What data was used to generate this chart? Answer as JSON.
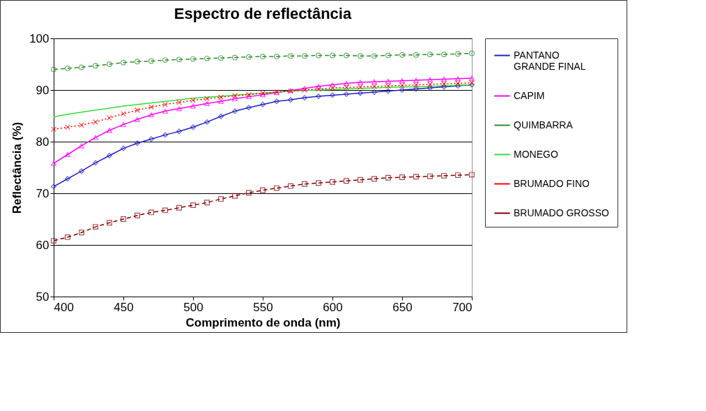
{
  "chart_data": {
    "type": "line",
    "title": "Espectro de reflectância",
    "xlabel": "Comprimento de onda (nm)",
    "ylabel": "Reflectância (%)",
    "x": [
      400,
      410,
      420,
      430,
      440,
      450,
      460,
      470,
      480,
      490,
      500,
      510,
      520,
      530,
      540,
      550,
      560,
      570,
      580,
      590,
      600,
      610,
      620,
      630,
      640,
      650,
      660,
      670,
      680,
      690,
      700
    ],
    "xlim": [
      400,
      700
    ],
    "xticks": [
      400,
      450,
      500,
      550,
      600,
      650,
      700
    ],
    "ylim": [
      50,
      100
    ],
    "yticks": [
      50,
      60,
      70,
      80,
      90,
      100
    ],
    "grid": "y",
    "legend": "right",
    "series": [
      {
        "name": "PANTANO GRANDE FINAL",
        "color": "#2020c0",
        "marker": "diamond",
        "line_style": "solid",
        "values": [
          71.3,
          72.8,
          74.3,
          75.9,
          77.3,
          78.7,
          79.7,
          80.5,
          81.3,
          82.0,
          82.8,
          83.8,
          84.9,
          85.9,
          86.6,
          87.2,
          87.8,
          88.1,
          88.5,
          88.8,
          89.0,
          89.2,
          89.4,
          89.6,
          89.8,
          90.0,
          90.2,
          90.4,
          90.6,
          90.8,
          91.0
        ]
      },
      {
        "name": "CAPIM",
        "color": "#ff00ff",
        "marker": "triangle",
        "line_style": "solid",
        "values": [
          75.8,
          77.5,
          79.2,
          80.8,
          82.2,
          83.3,
          84.3,
          85.2,
          85.9,
          86.4,
          86.9,
          87.4,
          87.8,
          88.3,
          88.7,
          89.1,
          89.5,
          89.9,
          90.3,
          90.7,
          91.0,
          91.3,
          91.5,
          91.6,
          91.7,
          91.8,
          91.9,
          92.0,
          92.1,
          92.2,
          92.3
        ]
      },
      {
        "name": "QUIMBARRA",
        "color": "#2e8b2e",
        "marker": "circle",
        "line_style": "dashed",
        "values": [
          94.0,
          94.2,
          94.4,
          94.7,
          95.0,
          95.3,
          95.5,
          95.6,
          95.8,
          95.9,
          96.0,
          96.1,
          96.2,
          96.3,
          96.4,
          96.5,
          96.5,
          96.6,
          96.6,
          96.7,
          96.7,
          96.7,
          96.6,
          96.6,
          96.7,
          96.8,
          96.8,
          96.9,
          96.9,
          97.0,
          97.1
        ]
      },
      {
        "name": "MONEGO",
        "color": "#33dd33",
        "marker": "none",
        "line_style": "solid",
        "values": [
          84.8,
          85.3,
          85.7,
          86.1,
          86.5,
          86.9,
          87.2,
          87.5,
          87.8,
          88.1,
          88.4,
          88.6,
          88.8,
          89.0,
          89.2,
          89.4,
          89.6,
          89.8,
          89.9,
          90.0,
          90.1,
          90.2,
          90.3,
          90.4,
          90.5,
          90.6,
          90.6,
          90.7,
          90.8,
          90.9,
          91.0
        ]
      },
      {
        "name": "BRUMADO FINO",
        "color": "#ff0000",
        "marker": "cross",
        "line_style": "dotted",
        "values": [
          82.4,
          82.8,
          83.2,
          83.8,
          84.6,
          85.4,
          86.1,
          86.7,
          87.2,
          87.6,
          88.0,
          88.3,
          88.6,
          88.9,
          89.1,
          89.4,
          89.6,
          89.8,
          90.0,
          90.2,
          90.4,
          90.5,
          90.6,
          90.7,
          90.8,
          90.9,
          91.0,
          91.1,
          91.2,
          91.3,
          91.4
        ]
      },
      {
        "name": "BRUMADO GROSSO",
        "color": "#800000",
        "marker": "square",
        "line_style": "dashed",
        "values": [
          60.8,
          61.5,
          62.4,
          63.5,
          64.3,
          65.0,
          65.7,
          66.3,
          66.7,
          67.2,
          67.7,
          68.2,
          68.9,
          69.5,
          70.1,
          70.6,
          71.0,
          71.4,
          71.8,
          72.0,
          72.2,
          72.4,
          72.6,
          72.8,
          73.0,
          73.1,
          73.2,
          73.3,
          73.4,
          73.5,
          73.6
        ]
      }
    ]
  }
}
